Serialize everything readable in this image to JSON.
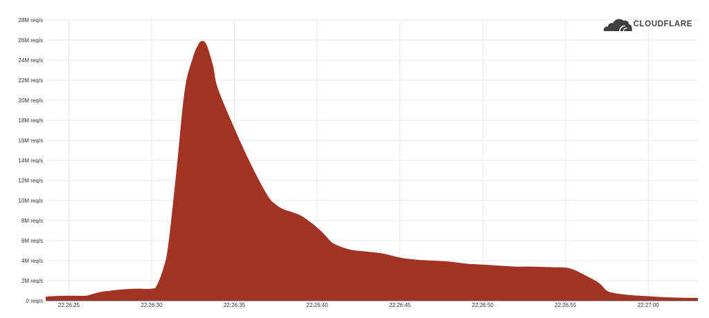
{
  "logo": {
    "text": "CLOUDFLARE",
    "icon": "cloudflare-cloud-icon",
    "color": "#404040"
  },
  "chart_data": {
    "type": "area",
    "title": "",
    "xlabel": "",
    "ylabel": "",
    "color": "#a23426",
    "grid": true,
    "y_unit": "M req/s",
    "ylim": [
      0,
      28
    ],
    "xlim": [
      "22:26:23.6",
      "22:27:03.0"
    ],
    "y_ticks": [
      0,
      2,
      4,
      6,
      8,
      10,
      12,
      14,
      16,
      18,
      20,
      22,
      24,
      26,
      28
    ],
    "y_tick_labels": [
      "0 req/s",
      "2M req/s",
      "4M req/s",
      "6M req/s",
      "8M req/s",
      "10M req/s",
      "12M req/s",
      "14M req/s",
      "16M req/s",
      "18M req/s",
      "20M req/s",
      "22M req/s",
      "24M req/s",
      "26M req/s",
      "28M req/s"
    ],
    "x_ticks": [
      "22:26:25",
      "22:26:30",
      "22:26:35",
      "22:26:40",
      "22:26:45",
      "22:26:50",
      "22:26:55",
      "22:27:00"
    ],
    "series": [
      {
        "x": [
          "22:26:23.6",
          "22:26:24.0",
          "22:26:25.0",
          "22:26:26.0",
          "22:26:26.5",
          "22:26:27.0",
          "22:26:27.5",
          "22:26:28.0",
          "22:26:29.0",
          "22:26:30.0",
          "22:26:30.3",
          "22:26:30.7",
          "22:26:31.0",
          "22:26:31.5",
          "22:26:32.0",
          "22:26:32.5",
          "22:26:32.8",
          "22:26:33.0",
          "22:26:33.3",
          "22:26:33.7",
          "22:26:34.0",
          "22:26:35.0",
          "22:26:36.0",
          "22:26:37.0",
          "22:26:37.5",
          "22:26:38.0",
          "22:26:39.0",
          "22:26:40.0",
          "22:26:40.5",
          "22:26:41.0",
          "22:26:42.0",
          "22:26:43.0",
          "22:26:44.0",
          "22:26:45.0",
          "22:26:46.0",
          "22:26:47.0",
          "22:26:48.0",
          "22:26:49.0",
          "22:26:50.0",
          "22:26:51.0",
          "22:26:52.0",
          "22:26:53.0",
          "22:26:54.0",
          "22:26:55.0",
          "22:26:55.5",
          "22:26:56.0",
          "22:26:57.0",
          "22:26:57.5",
          "22:26:58.0",
          "22:26:59.0",
          "22:27:00.0",
          "22:27:01.0",
          "22:27:02.0",
          "22:27:03.0"
        ],
        "y": [
          0.4,
          0.45,
          0.5,
          0.5,
          0.7,
          0.9,
          1.0,
          1.1,
          1.2,
          1.2,
          1.5,
          3.2,
          5.5,
          13,
          21,
          24.3,
          25.5,
          25.9,
          25.6,
          23.5,
          21.2,
          17.2,
          13.6,
          10.5,
          9.6,
          9.1,
          8.5,
          7.3,
          6.5,
          5.7,
          5.1,
          4.9,
          4.7,
          4.3,
          4.1,
          4.0,
          3.9,
          3.7,
          3.6,
          3.5,
          3.4,
          3.4,
          3.35,
          3.3,
          3.1,
          2.7,
          1.8,
          1.0,
          0.75,
          0.55,
          0.45,
          0.35,
          0.3,
          0.28
        ]
      }
    ]
  }
}
